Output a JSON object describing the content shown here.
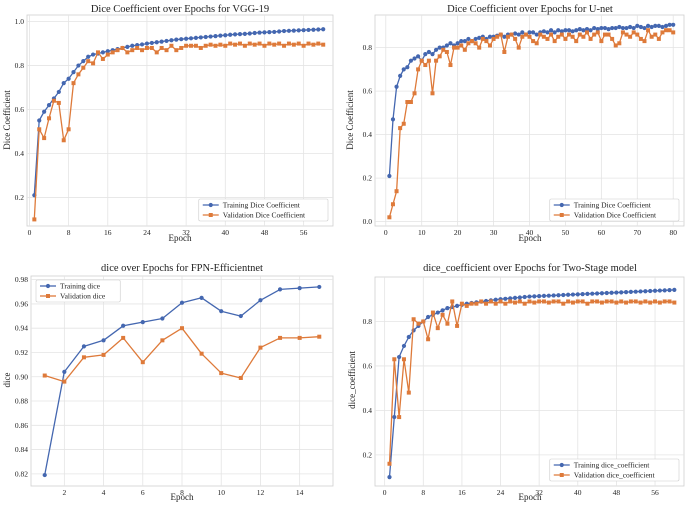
{
  "colors": {
    "train": "#4467b0",
    "val": "#de7a3a",
    "grid": "#e4e4e4",
    "spine": "#cfcfcf",
    "text": "#222222"
  },
  "chart_data": [
    {
      "type": "line",
      "title": "Dice Coefficient over Epochs for VGG-19",
      "xlabel": "Epoch",
      "ylabel": "Dice Coefficient",
      "xlim": [
        -0.5,
        62
      ],
      "ylim": [
        0.07,
        1.03
      ],
      "xticks": [
        0,
        8,
        16,
        24,
        32,
        40,
        48,
        56
      ],
      "yticks": [
        0.2,
        0.4,
        0.6,
        0.8,
        1.0
      ],
      "ytick_format": 1,
      "grid": true,
      "legend_position": "lower-right",
      "series": [
        {
          "name": "Training Dice Coefficient",
          "marker": "circle",
          "x": [
            1,
            2,
            3,
            4,
            5,
            6,
            7,
            8,
            9,
            10,
            11,
            12,
            13,
            14,
            15,
            16,
            17,
            18,
            19,
            20,
            21,
            22,
            23,
            24,
            25,
            26,
            27,
            28,
            29,
            30,
            31,
            32,
            33,
            34,
            35,
            36,
            37,
            38,
            39,
            40,
            41,
            42,
            43,
            44,
            45,
            46,
            47,
            48,
            49,
            50,
            51,
            52,
            53,
            54,
            55,
            56,
            57,
            58,
            59,
            60
          ],
          "y": [
            0.21,
            0.55,
            0.59,
            0.62,
            0.65,
            0.68,
            0.72,
            0.74,
            0.77,
            0.8,
            0.82,
            0.84,
            0.85,
            0.855,
            0.86,
            0.865,
            0.87,
            0.875,
            0.88,
            0.885,
            0.89,
            0.893,
            0.896,
            0.9,
            0.903,
            0.906,
            0.909,
            0.912,
            0.915,
            0.918,
            0.92,
            0.922,
            0.924,
            0.926,
            0.928,
            0.93,
            0.932,
            0.934,
            0.936,
            0.938,
            0.94,
            0.942,
            0.943,
            0.944,
            0.946,
            0.948,
            0.95,
            0.951,
            0.952,
            0.953,
            0.955,
            0.957,
            0.958,
            0.959,
            0.96,
            0.961,
            0.962,
            0.963,
            0.964,
            0.965
          ]
        },
        {
          "name": "Validation Dice Coefficient",
          "marker": "square",
          "x": [
            1,
            2,
            3,
            4,
            5,
            6,
            7,
            8,
            9,
            10,
            11,
            12,
            13,
            14,
            15,
            16,
            17,
            18,
            19,
            20,
            21,
            22,
            23,
            24,
            25,
            26,
            27,
            28,
            29,
            30,
            31,
            32,
            33,
            34,
            35,
            36,
            37,
            38,
            39,
            40,
            41,
            42,
            43,
            44,
            45,
            46,
            47,
            48,
            49,
            50,
            51,
            52,
            53,
            54,
            55,
            56,
            57,
            58,
            59,
            60
          ],
          "y": [
            0.1,
            0.51,
            0.47,
            0.56,
            0.64,
            0.63,
            0.46,
            0.51,
            0.72,
            0.76,
            0.79,
            0.82,
            0.81,
            0.86,
            0.83,
            0.85,
            0.86,
            0.87,
            0.88,
            0.86,
            0.87,
            0.88,
            0.87,
            0.88,
            0.88,
            0.86,
            0.88,
            0.87,
            0.89,
            0.87,
            0.88,
            0.89,
            0.89,
            0.89,
            0.88,
            0.89,
            0.895,
            0.89,
            0.895,
            0.89,
            0.9,
            0.895,
            0.9,
            0.89,
            0.9,
            0.895,
            0.9,
            0.89,
            0.9,
            0.895,
            0.9,
            0.89,
            0.9,
            0.895,
            0.9,
            0.89,
            0.9,
            0.895,
            0.9,
            0.895
          ]
        }
      ]
    },
    {
      "type": "line",
      "title": "Dice Coefficient over Epochs for U-net",
      "xlabel": "Epoch",
      "ylabel": "Dice Coefficient",
      "xlim": [
        -3,
        83
      ],
      "ylim": [
        -0.02,
        0.95
      ],
      "xticks": [
        0,
        10,
        20,
        30,
        40,
        50,
        60,
        70,
        80
      ],
      "yticks": [
        0.0,
        0.2,
        0.4,
        0.6,
        0.8
      ],
      "ytick_format": 1,
      "grid": true,
      "legend_position": "lower-right",
      "series": [
        {
          "name": "Training Dice Coefficient",
          "marker": "circle",
          "x": [
            1,
            2,
            3,
            4,
            5,
            6,
            7,
            8,
            9,
            10,
            11,
            12,
            13,
            14,
            15,
            16,
            17,
            18,
            19,
            20,
            21,
            22,
            23,
            24,
            25,
            26,
            27,
            28,
            29,
            30,
            31,
            32,
            33,
            34,
            35,
            36,
            37,
            38,
            39,
            40,
            41,
            42,
            43,
            44,
            45,
            46,
            47,
            48,
            49,
            50,
            51,
            52,
            53,
            54,
            55,
            56,
            57,
            58,
            59,
            60,
            61,
            62,
            63,
            64,
            65,
            66,
            67,
            68,
            69,
            70,
            71,
            72,
            73,
            74,
            75,
            76,
            77,
            78,
            79,
            80
          ],
          "y": [
            0.21,
            0.47,
            0.62,
            0.67,
            0.7,
            0.71,
            0.74,
            0.75,
            0.76,
            0.74,
            0.77,
            0.78,
            0.77,
            0.79,
            0.8,
            0.8,
            0.81,
            0.82,
            0.81,
            0.82,
            0.83,
            0.83,
            0.84,
            0.83,
            0.84,
            0.845,
            0.85,
            0.84,
            0.85,
            0.85,
            0.855,
            0.86,
            0.85,
            0.86,
            0.86,
            0.865,
            0.86,
            0.87,
            0.86,
            0.87,
            0.87,
            0.86,
            0.87,
            0.875,
            0.87,
            0.88,
            0.87,
            0.88,
            0.875,
            0.88,
            0.88,
            0.875,
            0.88,
            0.885,
            0.88,
            0.885,
            0.88,
            0.89,
            0.885,
            0.89,
            0.89,
            0.885,
            0.89,
            0.89,
            0.895,
            0.89,
            0.89,
            0.895,
            0.89,
            0.9,
            0.895,
            0.89,
            0.9,
            0.895,
            0.9,
            0.9,
            0.895,
            0.9,
            0.905,
            0.905
          ]
        },
        {
          "name": "Validation Dice Coefficient",
          "marker": "square",
          "x": [
            1,
            2,
            3,
            4,
            5,
            6,
            7,
            8,
            9,
            10,
            11,
            12,
            13,
            14,
            15,
            16,
            17,
            18,
            19,
            20,
            21,
            22,
            23,
            24,
            25,
            26,
            27,
            28,
            29,
            30,
            31,
            32,
            33,
            34,
            35,
            36,
            37,
            38,
            39,
            40,
            41,
            42,
            43,
            44,
            45,
            46,
            47,
            48,
            49,
            50,
            51,
            52,
            53,
            54,
            55,
            56,
            57,
            58,
            59,
            60,
            61,
            62,
            63,
            64,
            65,
            66,
            67,
            68,
            69,
            70,
            71,
            72,
            73,
            74,
            75,
            76,
            77,
            78,
            79,
            80
          ],
          "y": [
            0.02,
            0.08,
            0.14,
            0.43,
            0.45,
            0.55,
            0.55,
            0.59,
            0.7,
            0.74,
            0.72,
            0.74,
            0.59,
            0.74,
            0.76,
            0.79,
            0.78,
            0.72,
            0.8,
            0.8,
            0.81,
            0.79,
            0.82,
            0.83,
            0.82,
            0.8,
            0.84,
            0.83,
            0.81,
            0.84,
            0.85,
            0.86,
            0.78,
            0.85,
            0.86,
            0.84,
            0.8,
            0.85,
            0.86,
            0.85,
            0.83,
            0.82,
            0.86,
            0.85,
            0.84,
            0.86,
            0.83,
            0.85,
            0.86,
            0.84,
            0.86,
            0.85,
            0.83,
            0.86,
            0.85,
            0.87,
            0.84,
            0.86,
            0.87,
            0.83,
            0.86,
            0.86,
            0.84,
            0.81,
            0.82,
            0.87,
            0.86,
            0.85,
            0.87,
            0.86,
            0.84,
            0.83,
            0.88,
            0.85,
            0.86,
            0.84,
            0.87,
            0.88,
            0.88,
            0.87
          ]
        }
      ]
    },
    {
      "type": "line",
      "title": "dice over Epochs for FPN-Efficientnet",
      "xlabel": "Epoch",
      "ylabel": "dice",
      "xlim": [
        0.3,
        15.7
      ],
      "ylim": [
        0.81,
        0.983
      ],
      "xticks": [
        2,
        4,
        6,
        8,
        10,
        12,
        14
      ],
      "yticks": [
        0.82,
        0.84,
        0.86,
        0.88,
        0.9,
        0.92,
        0.94,
        0.96,
        0.98
      ],
      "ytick_format": 2,
      "grid": true,
      "legend_position": "upper-left",
      "series": [
        {
          "name": "Training dice",
          "marker": "circle",
          "x": [
            1,
            2,
            3,
            4,
            5,
            6,
            7,
            8,
            9,
            10,
            11,
            12,
            13,
            14,
            15
          ],
          "y": [
            0.819,
            0.904,
            0.925,
            0.93,
            0.942,
            0.945,
            0.948,
            0.961,
            0.965,
            0.954,
            0.95,
            0.963,
            0.972,
            0.973,
            0.974
          ]
        },
        {
          "name": "Validation dice",
          "marker": "square",
          "x": [
            1,
            2,
            3,
            4,
            5,
            6,
            7,
            8,
            9,
            10,
            11,
            12,
            13,
            14,
            15
          ],
          "y": [
            0.901,
            0.896,
            0.916,
            0.918,
            0.932,
            0.912,
            0.93,
            0.94,
            0.919,
            0.903,
            0.899,
            0.924,
            0.932,
            0.932,
            0.933
          ]
        }
      ]
    },
    {
      "type": "line",
      "title": "dice_coefficient over Epochs for Two-Stage model",
      "xlabel": "Epoch",
      "ylabel": "dice_coefficient",
      "xlim": [
        -2,
        62
      ],
      "ylim": [
        0.06,
        1.0
      ],
      "xticks": [
        0,
        8,
        16,
        24,
        32,
        40,
        48,
        56
      ],
      "yticks": [
        0.2,
        0.4,
        0.6,
        0.8
      ],
      "ytick_format": 1,
      "grid": true,
      "legend_position": "lower-right",
      "series": [
        {
          "name": "Training dice_coefficient",
          "marker": "circle",
          "x": [
            1,
            2,
            3,
            4,
            5,
            6,
            7,
            8,
            9,
            10,
            11,
            12,
            13,
            14,
            15,
            16,
            17,
            18,
            19,
            20,
            21,
            22,
            23,
            24,
            25,
            26,
            27,
            28,
            29,
            30,
            31,
            32,
            33,
            34,
            35,
            36,
            37,
            38,
            39,
            40,
            41,
            42,
            43,
            44,
            45,
            46,
            47,
            48,
            49,
            50,
            51,
            52,
            53,
            54,
            55,
            56,
            57,
            58,
            59,
            60
          ],
          "y": [
            0.1,
            0.37,
            0.64,
            0.69,
            0.73,
            0.76,
            0.78,
            0.8,
            0.82,
            0.83,
            0.84,
            0.85,
            0.86,
            0.865,
            0.87,
            0.875,
            0.88,
            0.883,
            0.886,
            0.889,
            0.892,
            0.895,
            0.898,
            0.9,
            0.902,
            0.904,
            0.906,
            0.908,
            0.91,
            0.912,
            0.913,
            0.914,
            0.915,
            0.916,
            0.917,
            0.918,
            0.919,
            0.92,
            0.921,
            0.922,
            0.923,
            0.924,
            0.925,
            0.926,
            0.927,
            0.928,
            0.929,
            0.93,
            0.931,
            0.932,
            0.933,
            0.934,
            0.935,
            0.936,
            0.937,
            0.938,
            0.939,
            0.94,
            0.941,
            0.942
          ]
        },
        {
          "name": "Validation dice_coefficient",
          "marker": "square",
          "x": [
            1,
            2,
            3,
            4,
            5,
            6,
            7,
            8,
            9,
            10,
            11,
            12,
            13,
            14,
            15,
            16,
            17,
            18,
            19,
            20,
            21,
            22,
            23,
            24,
            25,
            26,
            27,
            28,
            29,
            30,
            31,
            32,
            33,
            34,
            35,
            36,
            37,
            38,
            39,
            40,
            41,
            42,
            43,
            44,
            45,
            46,
            47,
            48,
            49,
            50,
            51,
            52,
            53,
            54,
            55,
            56,
            57,
            58,
            59,
            60
          ],
          "y": [
            0.16,
            0.63,
            0.37,
            0.63,
            0.48,
            0.81,
            0.79,
            0.8,
            0.72,
            0.84,
            0.77,
            0.83,
            0.79,
            0.89,
            0.78,
            0.88,
            0.87,
            0.88,
            0.88,
            0.89,
            0.88,
            0.89,
            0.88,
            0.89,
            0.88,
            0.89,
            0.885,
            0.89,
            0.88,
            0.89,
            0.885,
            0.89,
            0.89,
            0.885,
            0.89,
            0.89,
            0.88,
            0.89,
            0.885,
            0.89,
            0.89,
            0.88,
            0.89,
            0.89,
            0.885,
            0.89,
            0.89,
            0.885,
            0.89,
            0.885,
            0.89,
            0.89,
            0.885,
            0.89,
            0.885,
            0.89,
            0.885,
            0.89,
            0.89,
            0.885
          ]
        }
      ]
    }
  ]
}
